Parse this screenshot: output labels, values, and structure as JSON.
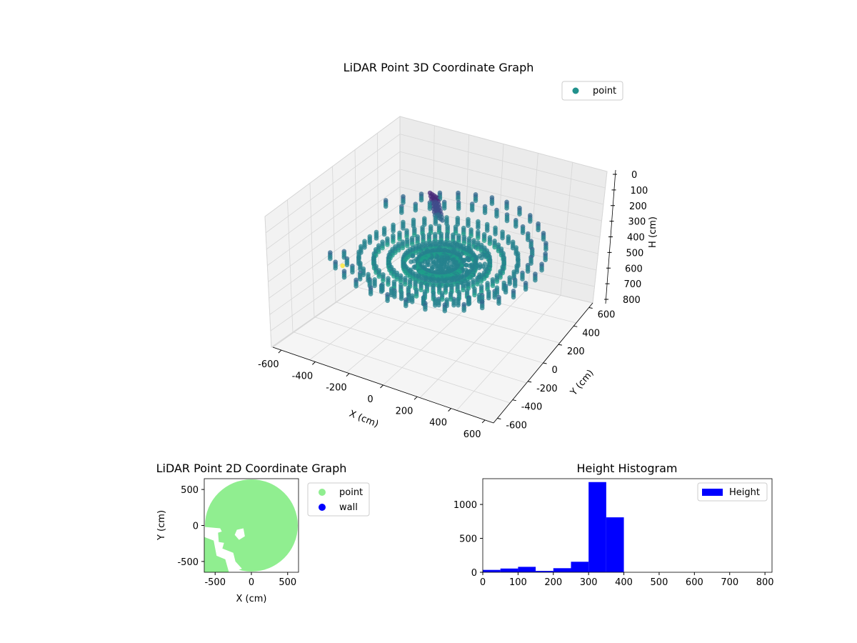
{
  "chart_data": [
    {
      "type": "scatter3d",
      "title": "LiDAR Point 3D Coordinate Graph",
      "xlabel": "X (cm)",
      "ylabel": "Y (cm)",
      "zlabel": "H (cm)",
      "xlim": [
        -650,
        650
      ],
      "ylim": [
        -650,
        650
      ],
      "zlim": [
        0,
        800
      ],
      "z_inverted": true,
      "xticks": [
        -600,
        -400,
        -200,
        0,
        200,
        400,
        600
      ],
      "yticks": [
        -600,
        -400,
        -200,
        0,
        200,
        400,
        600
      ],
      "zticks": [
        0,
        100,
        200,
        300,
        400,
        500,
        600,
        700,
        800
      ],
      "colormap": "viridis",
      "legend": [
        {
          "label": "point",
          "color": "#21918c"
        }
      ],
      "legend_position": "top-right",
      "scan": {
        "rings": [
          {
            "radius": 600,
            "height": 330
          },
          {
            "radius": 520,
            "height": 345
          },
          {
            "radius": 440,
            "height": 355
          },
          {
            "radius": 360,
            "height": 365
          },
          {
            "radius": 280,
            "height": 370
          },
          {
            "radius": 200,
            "height": 375
          },
          {
            "radius": 120,
            "height": 380
          }
        ],
        "spokes": 36,
        "gap_angle_range_deg": [
          150,
          215
        ],
        "tower": {
          "x": -120,
          "y": 160,
          "height_range": [
            80,
            260
          ]
        },
        "outlier": {
          "x": -660,
          "y": 80,
          "height": 620
        }
      }
    },
    {
      "type": "scatter",
      "title": "LiDAR Point 2D Coordinate Graph",
      "xlabel": "X (cm)",
      "ylabel": "Y (cm)",
      "xlim": [
        -650,
        650
      ],
      "ylim": [
        -650,
        650
      ],
      "xticks": [
        -500,
        0,
        500
      ],
      "yticks": [
        -500,
        0,
        500
      ],
      "series": [
        {
          "name": "point",
          "color": "#90ee90",
          "coverage_radius": 640
        },
        {
          "name": "wall",
          "color": "#0000ff",
          "points": []
        }
      ],
      "legend_position": "outside-right"
    },
    {
      "type": "histogram",
      "title": "Height Histogram",
      "xlim": [
        0,
        820
      ],
      "ylim": [
        0,
        1380
      ],
      "xticks": [
        0,
        100,
        200,
        300,
        400,
        500,
        600,
        700,
        800
      ],
      "yticks": [
        0,
        500,
        1000
      ],
      "bin_edges": [
        0,
        50,
        100,
        150,
        200,
        250,
        300,
        350,
        400,
        450,
        500,
        550,
        600,
        650,
        700,
        750,
        800
      ],
      "counts": [
        35,
        55,
        80,
        20,
        60,
        155,
        1330,
        810,
        0,
        0,
        0,
        0,
        0,
        0,
        0,
        0
      ],
      "series_name": "Height",
      "color": "#0000ff",
      "legend_position": "top-right"
    }
  ]
}
